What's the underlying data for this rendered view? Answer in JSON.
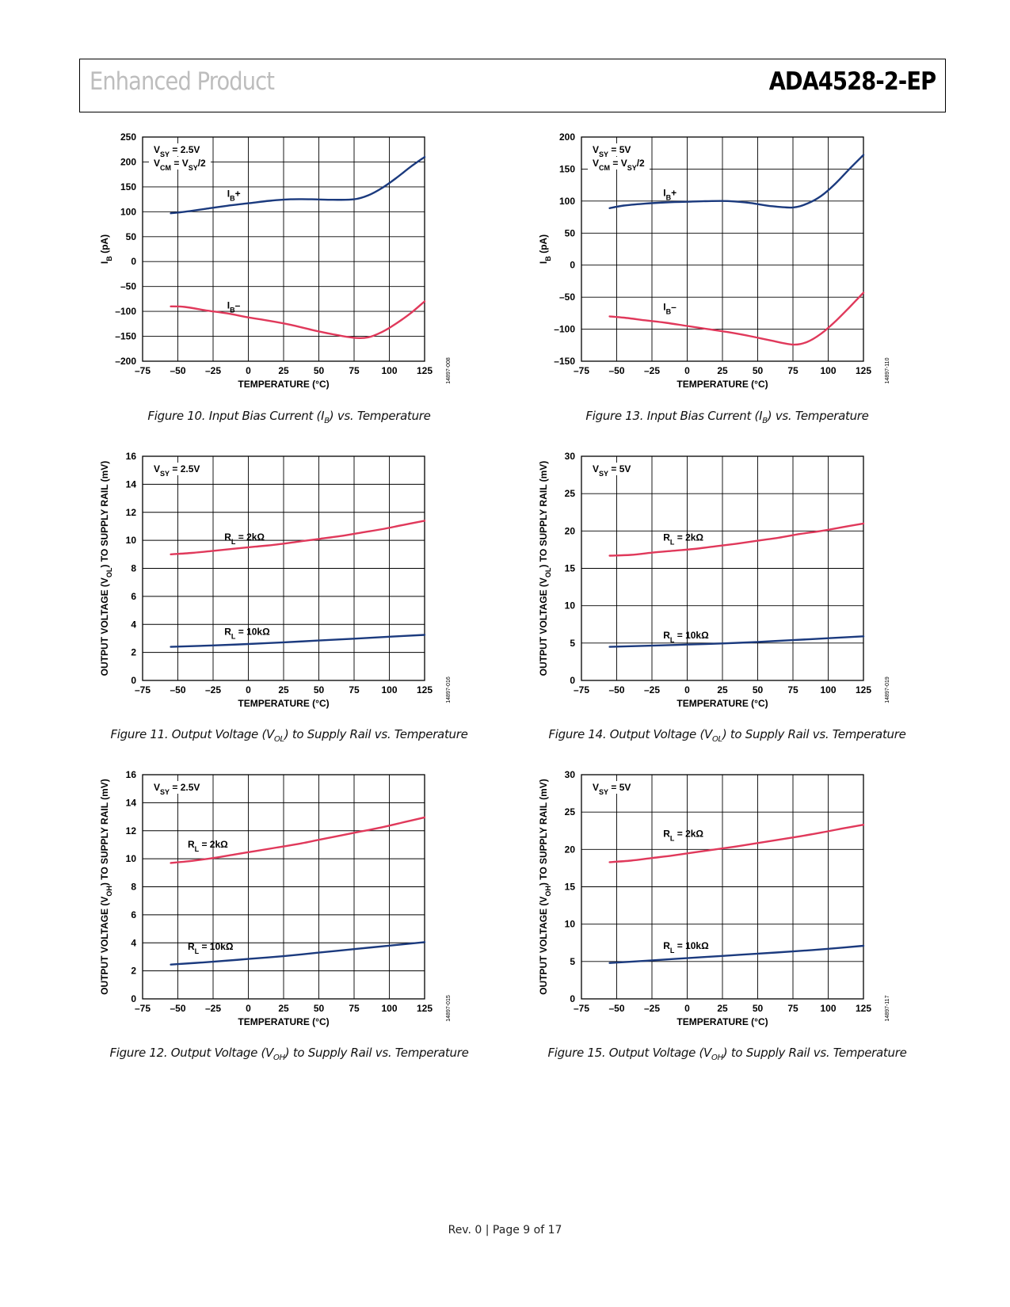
{
  "header": {
    "left": "Enhanced Product",
    "right": "ADA4528-2-EP"
  },
  "footer": "Rev. 0 | Page 9 of 17",
  "colors": {
    "blue": "#1b3a7e",
    "red": "#e0395b"
  },
  "chart_data": [
    {
      "id": "fig10",
      "type": "line",
      "caption_pre": "Figure 10. Input Bias Current (I",
      "caption_sub": "B",
      "caption_post": ") vs. Temperature",
      "xlabel": "TEMPERATURE (°C)",
      "ylabel_main": "I",
      "ylabel_sub": "B",
      "ylabel_post": " (pA)",
      "xlim": [
        -75,
        125
      ],
      "ylim": [
        -200,
        250
      ],
      "xticks": [
        -75,
        -50,
        -25,
        0,
        25,
        50,
        75,
        100,
        125
      ],
      "yticks": [
        -200,
        -150,
        -100,
        -50,
        0,
        50,
        100,
        150,
        200,
        250
      ],
      "xtick_labels": [
        "–75",
        "–50",
        "–25",
        "0",
        "25",
        "50",
        "75",
        "100",
        "125"
      ],
      "ytick_labels": [
        "–200",
        "–150",
        "–100",
        "–50",
        "0",
        "50",
        "100",
        "150",
        "200",
        "250"
      ],
      "code": "14897-008",
      "conditions": [
        {
          "main": "V",
          "sub": "SY",
          "post": " = 2.5V"
        },
        {
          "main": "V",
          "sub": "CM",
          "post": " = V",
          "sub2": "SY",
          "post2": "/2"
        }
      ],
      "series": [
        {
          "label_main": "I",
          "label_sub": "B",
          "label_post": "+",
          "color": "blue",
          "label_at": [
            -15,
            130
          ],
          "x": [
            -55,
            -45,
            -30,
            -15,
            0,
            15,
            30,
            45,
            60,
            75,
            85,
            95,
            105,
            115,
            125
          ],
          "y": [
            97,
            100,
            106,
            112,
            117,
            122,
            125,
            125,
            124,
            125,
            133,
            148,
            168,
            190,
            210
          ]
        },
        {
          "label_main": "I",
          "label_sub": "B",
          "label_post": "–",
          "color": "red",
          "label_at": [
            -15,
            -94
          ],
          "x": [
            -55,
            -45,
            -30,
            -15,
            0,
            15,
            30,
            45,
            60,
            75,
            85,
            95,
            105,
            115,
            125
          ],
          "y": [
            -90,
            -91,
            -98,
            -104,
            -112,
            -119,
            -127,
            -137,
            -146,
            -153,
            -152,
            -141,
            -124,
            -104,
            -80
          ]
        }
      ]
    },
    {
      "id": "fig13",
      "type": "line",
      "caption_pre": "Figure 13. Input Bias Current (I",
      "caption_sub": "B",
      "caption_post": ") vs. Temperature",
      "xlabel": "TEMPERATURE (°C)",
      "ylabel_main": "I",
      "ylabel_sub": "B",
      "ylabel_post": " (pA)",
      "xlim": [
        -75,
        125
      ],
      "ylim": [
        -150,
        200
      ],
      "xticks": [
        -75,
        -50,
        -25,
        0,
        25,
        50,
        75,
        100,
        125
      ],
      "yticks": [
        -150,
        -100,
        -50,
        0,
        50,
        100,
        150,
        200
      ],
      "xtick_labels": [
        "–75",
        "–50",
        "–25",
        "0",
        "25",
        "50",
        "75",
        "100",
        "125"
      ],
      "ytick_labels": [
        "–150",
        "–100",
        "–50",
        "0",
        "50",
        "100",
        "150",
        "200"
      ],
      "code": "14897-110",
      "conditions": [
        {
          "main": "V",
          "sub": "SY",
          "post": " = 5V"
        },
        {
          "main": "V",
          "sub": "CM",
          "post": " = V",
          "sub2": "SY",
          "post2": "/2"
        }
      ],
      "series": [
        {
          "label_main": "I",
          "label_sub": "B",
          "label_post": "+",
          "color": "blue",
          "label_at": [
            -17,
            108
          ],
          "x": [
            -55,
            -45,
            -30,
            -15,
            0,
            15,
            30,
            45,
            60,
            75,
            85,
            95,
            105,
            115,
            125
          ],
          "y": [
            89,
            93,
            96,
            98,
            99,
            100,
            100,
            97,
            92,
            90,
            96,
            108,
            127,
            150,
            172
          ]
        },
        {
          "label_main": "I",
          "label_sub": "B",
          "label_post": "–",
          "color": "red",
          "label_at": [
            -17,
            -70
          ],
          "x": [
            -55,
            -45,
            -30,
            -15,
            0,
            15,
            30,
            45,
            60,
            75,
            85,
            95,
            105,
            115,
            125
          ],
          "y": [
            -80,
            -82,
            -86,
            -90,
            -95,
            -100,
            -105,
            -111,
            -118,
            -124,
            -120,
            -107,
            -88,
            -66,
            -43
          ]
        }
      ]
    },
    {
      "id": "fig11",
      "type": "line",
      "caption_pre": "Figure 11. Output Voltage (V",
      "caption_sub": "OL",
      "caption_post": ") to Supply Rail vs. Temperature",
      "xlabel": "TEMPERATURE (°C)",
      "ylabel_main": "OUTPUT VOLTAGE (V",
      "ylabel_sub": "OL",
      "ylabel_post": ") TO SUPPLY RAIL (mV)",
      "xlim": [
        -75,
        125
      ],
      "ylim": [
        0,
        16
      ],
      "xticks": [
        -75,
        -50,
        -25,
        0,
        25,
        50,
        75,
        100,
        125
      ],
      "yticks": [
        0,
        2,
        4,
        6,
        8,
        10,
        12,
        14,
        16
      ],
      "xtick_labels": [
        "–75",
        "–50",
        "–25",
        "0",
        "25",
        "50",
        "75",
        "100",
        "125"
      ],
      "ytick_labels": [
        "0",
        "2",
        "4",
        "6",
        "8",
        "10",
        "12",
        "14",
        "16"
      ],
      "code": "14897-016",
      "conditions": [
        {
          "main": "V",
          "sub": "SY",
          "post": " = 2.5V"
        }
      ],
      "series": [
        {
          "label_main": "R",
          "label_sub": "L",
          "label_post": " = 2kΩ",
          "color": "red",
          "label_at": [
            -17,
            10
          ],
          "x": [
            -55,
            -40,
            -25,
            -10,
            5,
            20,
            35,
            50,
            65,
            80,
            95,
            110,
            125
          ],
          "y": [
            9.0,
            9.1,
            9.25,
            9.4,
            9.55,
            9.7,
            9.9,
            10.1,
            10.3,
            10.55,
            10.8,
            11.1,
            11.4
          ]
        },
        {
          "label_main": "R",
          "label_sub": "L",
          "label_post": " = 10kΩ",
          "color": "blue",
          "label_at": [
            -17,
            3.25
          ],
          "x": [
            -55,
            -25,
            0,
            25,
            50,
            75,
            100,
            125
          ],
          "y": [
            2.4,
            2.5,
            2.6,
            2.72,
            2.85,
            2.98,
            3.12,
            3.25
          ]
        }
      ]
    },
    {
      "id": "fig14",
      "type": "line",
      "caption_pre": "Figure 14. Output Voltage (V",
      "caption_sub": "OL",
      "caption_post": ") to Supply Rail vs. Temperature",
      "xlabel": "TEMPERATURE (°C)",
      "ylabel_main": "OUTPUT VOLTAGE (V",
      "ylabel_sub": "OL",
      "ylabel_post": ") TO SUPPLY RAIL (mV)",
      "xlim": [
        -75,
        125
      ],
      "ylim": [
        0,
        30
      ],
      "xticks": [
        -75,
        -50,
        -25,
        0,
        25,
        50,
        75,
        100,
        125
      ],
      "yticks": [
        0,
        5,
        10,
        15,
        20,
        25,
        30
      ],
      "xtick_labels": [
        "–75",
        "–50",
        "–25",
        "0",
        "25",
        "50",
        "75",
        "100",
        "125"
      ],
      "ytick_labels": [
        "0",
        "5",
        "10",
        "15",
        "20",
        "25",
        "30"
      ],
      "code": "14897-019",
      "conditions": [
        {
          "main": "V",
          "sub": "SY",
          "post": " = 5V"
        }
      ],
      "series": [
        {
          "label_main": "R",
          "label_sub": "L",
          "label_post": " = 2kΩ",
          "color": "red",
          "label_at": [
            -17,
            18.7
          ],
          "x": [
            -55,
            -40,
            -25,
            -10,
            5,
            20,
            35,
            50,
            65,
            80,
            95,
            110,
            125
          ],
          "y": [
            16.7,
            16.8,
            17.1,
            17.35,
            17.6,
            17.95,
            18.3,
            18.7,
            19.1,
            19.6,
            20.0,
            20.5,
            21.0
          ]
        },
        {
          "label_main": "R",
          "label_sub": "L",
          "label_post": " = 10kΩ",
          "color": "blue",
          "label_at": [
            -17,
            5.6
          ],
          "x": [
            -55,
            -25,
            0,
            25,
            50,
            75,
            100,
            125
          ],
          "y": [
            4.5,
            4.65,
            4.8,
            4.95,
            5.15,
            5.4,
            5.65,
            5.9
          ]
        }
      ]
    },
    {
      "id": "fig12",
      "type": "line",
      "caption_pre": "Figure 12. Output Voltage (V",
      "caption_sub": "OH",
      "caption_post": ") to Supply Rail vs. Temperature",
      "xlabel": "TEMPERATURE (°C)",
      "ylabel_main": "OUTPUT VOLTAGE (V",
      "ylabel_sub": "OH",
      "ylabel_post": ") TO SUPPLY RAIL (mV)",
      "xlim": [
        -75,
        125
      ],
      "ylim": [
        0,
        16
      ],
      "xticks": [
        -75,
        -50,
        -25,
        0,
        25,
        50,
        75,
        100,
        125
      ],
      "yticks": [
        0,
        2,
        4,
        6,
        8,
        10,
        12,
        14,
        16
      ],
      "xtick_labels": [
        "–75",
        "–50",
        "–25",
        "0",
        "25",
        "50",
        "75",
        "100",
        "125"
      ],
      "ytick_labels": [
        "0",
        "2",
        "4",
        "6",
        "8",
        "10",
        "12",
        "14",
        "16"
      ],
      "code": "14897-015",
      "conditions": [
        {
          "main": "V",
          "sub": "SY",
          "post": " = 2.5V"
        }
      ],
      "series": [
        {
          "label_main": "R",
          "label_sub": "L",
          "label_post": " = 2kΩ",
          "color": "red",
          "label_at": [
            -43,
            10.8
          ],
          "x": [
            -55,
            -40,
            -25,
            -10,
            5,
            20,
            35,
            50,
            65,
            80,
            95,
            110,
            125
          ],
          "y": [
            9.7,
            9.85,
            10.05,
            10.3,
            10.55,
            10.8,
            11.05,
            11.35,
            11.65,
            11.95,
            12.25,
            12.6,
            12.95
          ]
        },
        {
          "label_main": "R",
          "label_sub": "L",
          "label_post": " = 10kΩ",
          "color": "blue",
          "label_at": [
            -43,
            3.5
          ],
          "x": [
            -55,
            -25,
            0,
            25,
            50,
            75,
            100,
            125
          ],
          "y": [
            2.45,
            2.65,
            2.85,
            3.05,
            3.3,
            3.55,
            3.8,
            4.05
          ]
        }
      ]
    },
    {
      "id": "fig15",
      "type": "line",
      "caption_pre": "Figure 15. Output Voltage (V",
      "caption_sub": "OH",
      "caption_post": ") to Supply Rail vs. Temperature",
      "xlabel": "TEMPERATURE (°C)",
      "ylabel_main": "OUTPUT VOLTAGE (V",
      "ylabel_sub": "OH",
      "ylabel_post": ") TO SUPPLY RAIL (mV)",
      "xlim": [
        -75,
        125
      ],
      "ylim": [
        0,
        30
      ],
      "xticks": [
        -75,
        -50,
        -25,
        0,
        25,
        50,
        75,
        100,
        125
      ],
      "yticks": [
        0,
        5,
        10,
        15,
        20,
        25,
        30
      ],
      "xtick_labels": [
        "–75",
        "–50",
        "–25",
        "0",
        "25",
        "50",
        "75",
        "100",
        "125"
      ],
      "ytick_labels": [
        "0",
        "5",
        "10",
        "15",
        "20",
        "25",
        "30"
      ],
      "code": "14897-117",
      "conditions": [
        {
          "main": "V",
          "sub": "SY",
          "post": " = 5V"
        }
      ],
      "series": [
        {
          "label_main": "R",
          "label_sub": "L",
          "label_post": " = 2kΩ",
          "color": "red",
          "label_at": [
            -17,
            21.7
          ],
          "x": [
            -55,
            -40,
            -25,
            -10,
            5,
            20,
            35,
            50,
            65,
            80,
            95,
            110,
            125
          ],
          "y": [
            18.3,
            18.5,
            18.85,
            19.2,
            19.6,
            20.0,
            20.4,
            20.85,
            21.3,
            21.75,
            22.25,
            22.8,
            23.3
          ]
        },
        {
          "label_main": "R",
          "label_sub": "L",
          "label_post": " = 10kΩ",
          "color": "blue",
          "label_at": [
            -17,
            6.7
          ],
          "x": [
            -55,
            -25,
            0,
            25,
            50,
            75,
            100,
            125
          ],
          "y": [
            4.8,
            5.15,
            5.45,
            5.75,
            6.05,
            6.35,
            6.7,
            7.1
          ]
        }
      ]
    }
  ]
}
